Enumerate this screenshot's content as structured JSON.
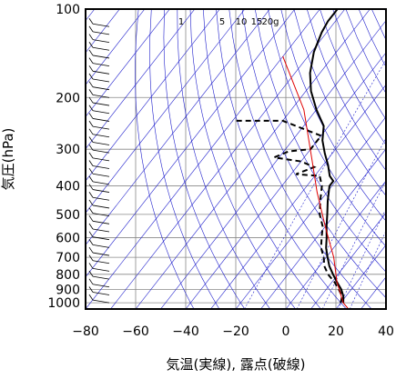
{
  "chart_data": {
    "type": "line",
    "title": "",
    "xlabel": "気温(実線), 露点(破線)",
    "ylabel": "気圧(hPa)",
    "x_axis": {
      "min": -80,
      "max": 40,
      "ticks": [
        -80,
        -60,
        -40,
        -20,
        0,
        20,
        40
      ]
    },
    "y_axis": {
      "scale": "log",
      "min": 100,
      "max": 1050,
      "ticks": [
        100,
        200,
        300,
        400,
        500,
        600,
        700,
        800,
        900,
        1000
      ]
    },
    "grid": true,
    "mixing_ratio_labels": [
      "1",
      "5",
      "10",
      "15",
      "20g"
    ],
    "series": [
      {
        "kind": "temperature",
        "style": "solid",
        "color": "#000000",
        "points": [
          [
            21,
            1000
          ],
          [
            19,
            950
          ],
          [
            16,
            900
          ],
          [
            12,
            850
          ],
          [
            8,
            800
          ],
          [
            4,
            750
          ],
          [
            0.5,
            700
          ],
          [
            -3,
            650
          ],
          [
            -6,
            600
          ],
          [
            -9.5,
            550
          ],
          [
            -13,
            500
          ],
          [
            -17,
            450
          ],
          [
            -21,
            400
          ],
          [
            -21,
            385
          ],
          [
            -24,
            370
          ],
          [
            -28,
            340
          ],
          [
            -33,
            310
          ],
          [
            -38,
            280
          ],
          [
            -42,
            250
          ],
          [
            -50,
            220
          ],
          [
            -58,
            190
          ],
          [
            -64,
            165
          ],
          [
            -69,
            140
          ],
          [
            -72,
            120
          ],
          [
            -73,
            110
          ],
          [
            -73,
            100
          ]
        ]
      },
      {
        "kind": "dewpoint",
        "style": "dashed",
        "color": "#000000",
        "points": [
          [
            20,
            1000
          ],
          [
            18.5,
            950
          ],
          [
            15,
            900
          ],
          [
            11,
            850
          ],
          [
            6,
            800
          ],
          [
            2,
            750
          ],
          [
            -1,
            700
          ],
          [
            -5,
            650
          ],
          [
            -8,
            600
          ],
          [
            -11,
            550
          ],
          [
            -16,
            500
          ],
          [
            -20,
            450
          ],
          [
            -24,
            400
          ],
          [
            -28,
            370
          ],
          [
            -38,
            365
          ],
          [
            -33,
            345
          ],
          [
            -40,
            330
          ],
          [
            -52,
            320
          ],
          [
            -48,
            305
          ],
          [
            -40,
            300
          ],
          [
            -40,
            270
          ],
          [
            -60,
            240
          ],
          [
            -80,
            240
          ]
        ]
      },
      {
        "kind": "parcel",
        "style": "solid",
        "color": "#e00000",
        "points": [
          [
            25,
            1050
          ],
          [
            21,
            1000
          ],
          [
            12,
            850
          ],
          [
            3,
            700
          ],
          [
            -10,
            550
          ],
          [
            -24,
            420
          ],
          [
            -37,
            320
          ],
          [
            -55,
            220
          ],
          [
            -80,
            145
          ]
        ]
      }
    ],
    "dry_adiabat_line_color": "#1e1ecc",
    "mixing_ratio_line_color": "#1e1ecc",
    "wind_barbs_column": "left"
  }
}
